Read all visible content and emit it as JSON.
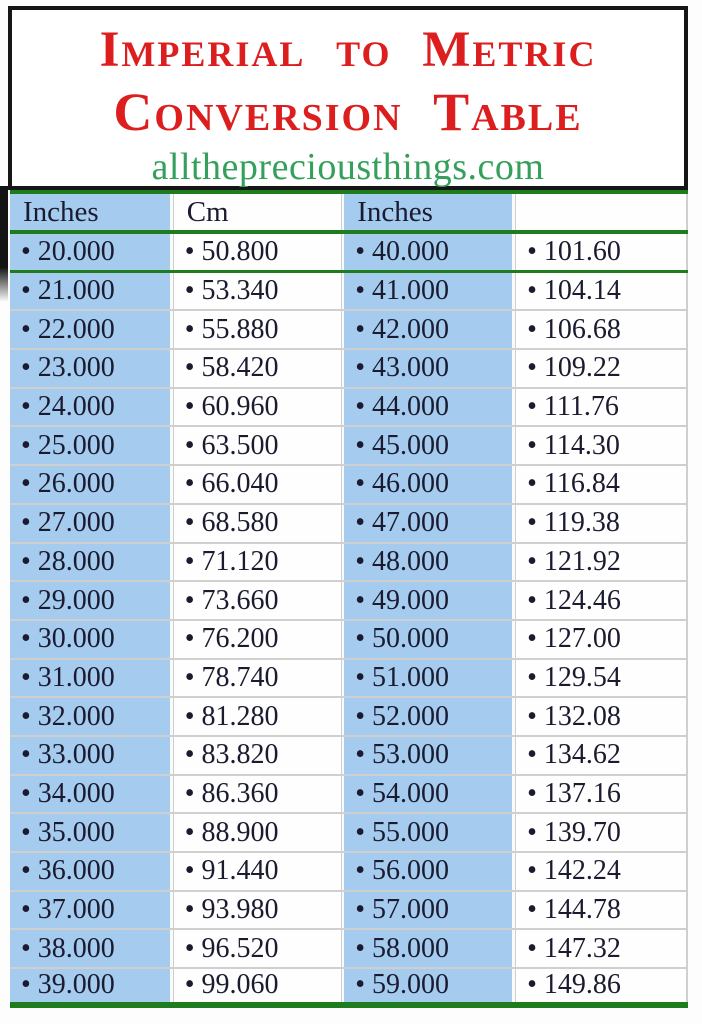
{
  "title": {
    "line1": "Imperial to Metric",
    "line2": "Conversion Table",
    "website": "allthepreciousthings.com"
  },
  "colors": {
    "title_red": "#DC1E1E",
    "website_green": "#35A05C",
    "cell_blue": "#A5CBEF",
    "line_green": "#1E7C1E",
    "text_dark": "#1B1B30",
    "row_divider": "#CFCFCF",
    "border_black": "#161616"
  },
  "table": {
    "bullet": "•",
    "headers": [
      "Inches",
      "Cm",
      "Inches",
      ""
    ],
    "rows": [
      {
        "inches_a": "20.000",
        "cm_a": "50.800",
        "inches_b": "40.000",
        "cm_b": "101.60"
      },
      {
        "inches_a": "21.000",
        "cm_a": "53.340",
        "inches_b": "41.000",
        "cm_b": "104.14"
      },
      {
        "inches_a": "22.000",
        "cm_a": "55.880",
        "inches_b": "42.000",
        "cm_b": "106.68"
      },
      {
        "inches_a": "23.000",
        "cm_a": "58.420",
        "inches_b": "43.000",
        "cm_b": "109.22"
      },
      {
        "inches_a": "24.000",
        "cm_a": "60.960",
        "inches_b": "44.000",
        "cm_b": "111.76"
      },
      {
        "inches_a": "25.000",
        "cm_a": "63.500",
        "inches_b": "45.000",
        "cm_b": "114.30"
      },
      {
        "inches_a": "26.000",
        "cm_a": "66.040",
        "inches_b": "46.000",
        "cm_b": "116.84"
      },
      {
        "inches_a": "27.000",
        "cm_a": "68.580",
        "inches_b": "47.000",
        "cm_b": "119.38"
      },
      {
        "inches_a": "28.000",
        "cm_a": "71.120",
        "inches_b": "48.000",
        "cm_b": "121.92"
      },
      {
        "inches_a": "29.000",
        "cm_a": "73.660",
        "inches_b": "49.000",
        "cm_b": "124.46"
      },
      {
        "inches_a": "30.000",
        "cm_a": "76.200",
        "inches_b": "50.000",
        "cm_b": "127.00"
      },
      {
        "inches_a": "31.000",
        "cm_a": "78.740",
        "inches_b": "51.000",
        "cm_b": "129.54"
      },
      {
        "inches_a": "32.000",
        "cm_a": "81.280",
        "inches_b": "52.000",
        "cm_b": "132.08"
      },
      {
        "inches_a": "33.000",
        "cm_a": "83.820",
        "inches_b": "53.000",
        "cm_b": "134.62"
      },
      {
        "inches_a": "34.000",
        "cm_a": "86.360",
        "inches_b": "54.000",
        "cm_b": "137.16"
      },
      {
        "inches_a": "35.000",
        "cm_a": "88.900",
        "inches_b": "55.000",
        "cm_b": "139.70"
      },
      {
        "inches_a": "36.000",
        "cm_a": "91.440",
        "inches_b": "56.000",
        "cm_b": "142.24"
      },
      {
        "inches_a": "37.000",
        "cm_a": "93.980",
        "inches_b": "57.000",
        "cm_b": "144.78"
      },
      {
        "inches_a": "38.000",
        "cm_a": "96.520",
        "inches_b": "58.000",
        "cm_b": "147.32"
      },
      {
        "inches_a": "39.000",
        "cm_a": "99.060",
        "inches_b": "59.000",
        "cm_b": "149.86"
      }
    ]
  }
}
